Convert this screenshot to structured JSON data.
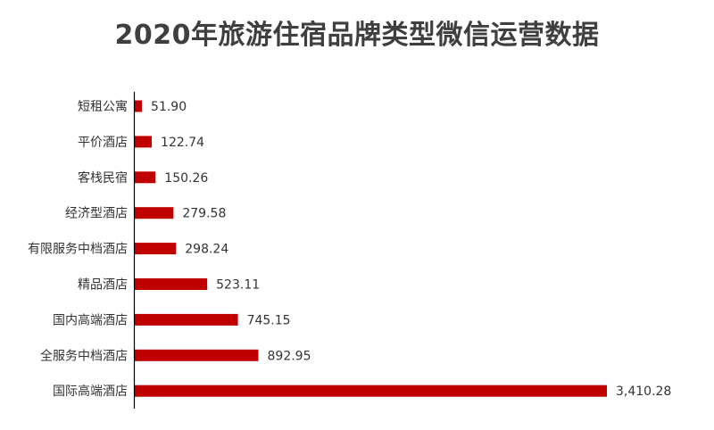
{
  "chart_data": {
    "type": "bar",
    "orientation": "horizontal",
    "title": "2020年旅游住宿品牌类型微信运营数据",
    "categories": [
      "短租公寓",
      "平价酒店",
      "客栈民宿",
      "经济型酒店",
      "有限服务中档酒店",
      "精品酒店",
      "国内高端酒店",
      "全服务中档酒店",
      "国际高端酒店"
    ],
    "values": [
      51.9,
      122.74,
      150.26,
      279.58,
      298.24,
      523.11,
      745.15,
      892.95,
      3410.28
    ],
    "value_labels": [
      "51.90",
      "122.74",
      "150.26",
      "279.58",
      "298.24",
      "523.11",
      "745.15",
      "892.95",
      "3,410.28"
    ],
    "xlim": [
      0,
      3410.28
    ],
    "grid": false,
    "legend": "none",
    "bar_color": "#c00000"
  }
}
